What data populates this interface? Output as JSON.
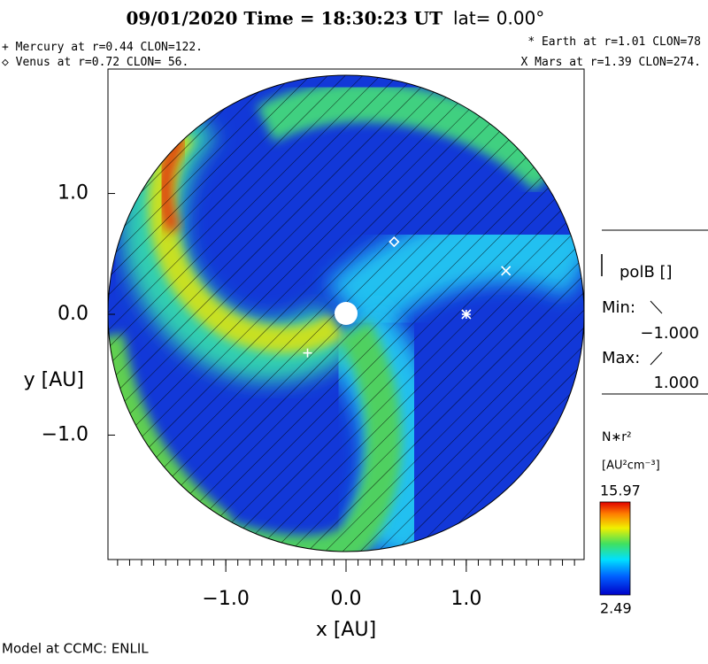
{
  "chart_data": {
    "type": "scatter",
    "title": "09/01/2020  Time = 18:30:23 UT",
    "subtitle": "lat= 0.00°",
    "xlabel": "x [AU]",
    "ylabel": "y [AU]",
    "xlim": [
      -1.98,
      1.98
    ],
    "ylim": [
      -2.03,
      2.03
    ],
    "xticks": [
      {
        "value": -1,
        "label": "−1.0"
      },
      {
        "value": 0,
        "label": "0.0"
      },
      {
        "value": 1,
        "label": "1.0"
      }
    ],
    "yticks": [
      {
        "value": -1,
        "label": "−1.0"
      },
      {
        "value": 0,
        "label": "0.0"
      },
      {
        "value": 1,
        "label": "1.0"
      }
    ],
    "series": [
      {
        "name": "Mercury at r=0.44 CLON=122.",
        "marker": "+",
        "x": [
          -0.32
        ],
        "y": [
          -0.32
        ]
      },
      {
        "name": "Venus at r=0.72 CLON= 56.",
        "marker": "◇",
        "x": [
          0.4
        ],
        "y": [
          0.6
        ]
      },
      {
        "name": "Earth at  r=1.01 CLON=78",
        "marker": "*",
        "x": [
          1.0
        ],
        "y": [
          0.0
        ]
      },
      {
        "name": "Mars at r=1.39 CLON=274.",
        "marker": "X",
        "x": [
          1.33
        ],
        "y": [
          0.36
        ]
      }
    ],
    "contour": {
      "label": "polB []",
      "min_label": "Min:",
      "min": {
        "value": -1,
        "label": "−1.000"
      },
      "max_label": "Max:",
      "max": {
        "value": 1,
        "label": "1.000"
      }
    },
    "colorbar": {
      "label": "N∗r²",
      "units": "[AU²cm⁻³]",
      "max": 15.97,
      "min": 2.49
    },
    "footer": "Model at CCMC: ENLIL"
  }
}
